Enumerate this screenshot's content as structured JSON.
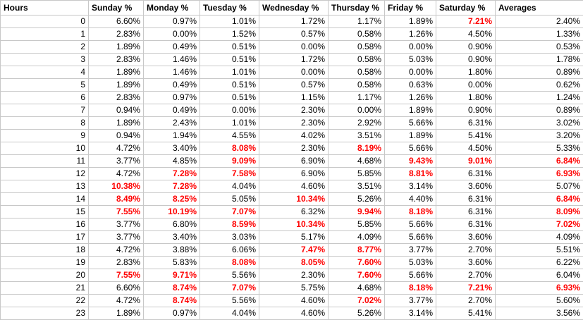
{
  "highlight_color": "#ff0000",
  "headers": [
    "Hours",
    "Sunday %",
    "Monday %",
    "Tuesday %",
    "Wednesday %",
    "Thursday %",
    "Friday %",
    "Saturday %",
    "Averages"
  ],
  "rows": [
    {
      "hour": "0",
      "cells": [
        {
          "v": "6.60%"
        },
        {
          "v": "0.97%"
        },
        {
          "v": "1.01%"
        },
        {
          "v": "1.72%"
        },
        {
          "v": "1.17%"
        },
        {
          "v": "1.89%"
        },
        {
          "v": "7.21%",
          "hl": true
        },
        {
          "v": "2.40%"
        }
      ]
    },
    {
      "hour": "1",
      "cells": [
        {
          "v": "2.83%"
        },
        {
          "v": "0.00%"
        },
        {
          "v": "1.52%"
        },
        {
          "v": "0.57%"
        },
        {
          "v": "0.58%"
        },
        {
          "v": "1.26%"
        },
        {
          "v": "4.50%"
        },
        {
          "v": "1.33%"
        }
      ]
    },
    {
      "hour": "2",
      "cells": [
        {
          "v": "1.89%"
        },
        {
          "v": "0.49%"
        },
        {
          "v": "0.51%"
        },
        {
          "v": "0.00%"
        },
        {
          "v": "0.58%"
        },
        {
          "v": "0.00%"
        },
        {
          "v": "0.90%"
        },
        {
          "v": "0.53%"
        }
      ]
    },
    {
      "hour": "3",
      "cells": [
        {
          "v": "2.83%"
        },
        {
          "v": "1.46%"
        },
        {
          "v": "0.51%"
        },
        {
          "v": "1.72%"
        },
        {
          "v": "0.58%"
        },
        {
          "v": "5.03%"
        },
        {
          "v": "0.90%"
        },
        {
          "v": "1.78%"
        }
      ]
    },
    {
      "hour": "4",
      "cells": [
        {
          "v": "1.89%"
        },
        {
          "v": "1.46%"
        },
        {
          "v": "1.01%"
        },
        {
          "v": "0.00%"
        },
        {
          "v": "0.58%"
        },
        {
          "v": "0.00%"
        },
        {
          "v": "1.80%"
        },
        {
          "v": "0.89%"
        }
      ]
    },
    {
      "hour": "5",
      "cells": [
        {
          "v": "1.89%"
        },
        {
          "v": "0.49%"
        },
        {
          "v": "0.51%"
        },
        {
          "v": "0.57%"
        },
        {
          "v": "0.58%"
        },
        {
          "v": "0.63%"
        },
        {
          "v": "0.00%"
        },
        {
          "v": "0.62%"
        }
      ]
    },
    {
      "hour": "6",
      "cells": [
        {
          "v": "2.83%"
        },
        {
          "v": "0.97%"
        },
        {
          "v": "0.51%"
        },
        {
          "v": "1.15%"
        },
        {
          "v": "1.17%"
        },
        {
          "v": "1.26%"
        },
        {
          "v": "1.80%"
        },
        {
          "v": "1.24%"
        }
      ]
    },
    {
      "hour": "7",
      "cells": [
        {
          "v": "0.94%"
        },
        {
          "v": "0.49%"
        },
        {
          "v": "0.00%"
        },
        {
          "v": "2.30%"
        },
        {
          "v": "0.00%"
        },
        {
          "v": "1.89%"
        },
        {
          "v": "0.90%"
        },
        {
          "v": "0.89%"
        }
      ]
    },
    {
      "hour": "8",
      "cells": [
        {
          "v": "1.89%"
        },
        {
          "v": "2.43%"
        },
        {
          "v": "1.01%"
        },
        {
          "v": "2.30%"
        },
        {
          "v": "2.92%"
        },
        {
          "v": "5.66%"
        },
        {
          "v": "6.31%"
        },
        {
          "v": "3.02%"
        }
      ]
    },
    {
      "hour": "9",
      "cells": [
        {
          "v": "0.94%"
        },
        {
          "v": "1.94%"
        },
        {
          "v": "4.55%"
        },
        {
          "v": "4.02%"
        },
        {
          "v": "3.51%"
        },
        {
          "v": "1.89%"
        },
        {
          "v": "5.41%"
        },
        {
          "v": "3.20%"
        }
      ]
    },
    {
      "hour": "10",
      "cells": [
        {
          "v": "4.72%"
        },
        {
          "v": "3.40%"
        },
        {
          "v": "8.08%",
          "hl": true
        },
        {
          "v": "2.30%"
        },
        {
          "v": "8.19%",
          "hl": true
        },
        {
          "v": "5.66%"
        },
        {
          "v": "4.50%"
        },
        {
          "v": "5.33%"
        }
      ]
    },
    {
      "hour": "11",
      "cells": [
        {
          "v": "3.77%"
        },
        {
          "v": "4.85%"
        },
        {
          "v": "9.09%",
          "hl": true
        },
        {
          "v": "6.90%"
        },
        {
          "v": "4.68%"
        },
        {
          "v": "9.43%",
          "hl": true
        },
        {
          "v": "9.01%",
          "hl": true
        },
        {
          "v": "6.84%",
          "hl": true
        }
      ]
    },
    {
      "hour": "12",
      "cells": [
        {
          "v": "4.72%"
        },
        {
          "v": "7.28%",
          "hl": true
        },
        {
          "v": "7.58%",
          "hl": true
        },
        {
          "v": "6.90%"
        },
        {
          "v": "5.85%"
        },
        {
          "v": "8.81%",
          "hl": true
        },
        {
          "v": "6.31%"
        },
        {
          "v": "6.93%",
          "hl": true
        }
      ]
    },
    {
      "hour": "13",
      "cells": [
        {
          "v": "10.38%",
          "hl": true
        },
        {
          "v": "7.28%",
          "hl": true
        },
        {
          "v": "4.04%"
        },
        {
          "v": "4.60%"
        },
        {
          "v": "3.51%"
        },
        {
          "v": "3.14%"
        },
        {
          "v": "3.60%"
        },
        {
          "v": "5.07%"
        }
      ]
    },
    {
      "hour": "14",
      "cells": [
        {
          "v": "8.49%",
          "hl": true
        },
        {
          "v": "8.25%",
          "hl": true
        },
        {
          "v": "5.05%"
        },
        {
          "v": "10.34%",
          "hl": true
        },
        {
          "v": "5.26%"
        },
        {
          "v": "4.40%"
        },
        {
          "v": "6.31%"
        },
        {
          "v": "6.84%",
          "hl": true
        }
      ]
    },
    {
      "hour": "15",
      "cells": [
        {
          "v": "7.55%",
          "hl": true
        },
        {
          "v": "10.19%",
          "hl": true
        },
        {
          "v": "7.07%",
          "hl": true
        },
        {
          "v": "6.32%"
        },
        {
          "v": "9.94%",
          "hl": true
        },
        {
          "v": "8.18%",
          "hl": true
        },
        {
          "v": "6.31%"
        },
        {
          "v": "8.09%",
          "hl": true
        }
      ]
    },
    {
      "hour": "16",
      "cells": [
        {
          "v": "3.77%"
        },
        {
          "v": "6.80%"
        },
        {
          "v": "8.59%",
          "hl": true
        },
        {
          "v": "10.34%",
          "hl": true
        },
        {
          "v": "5.85%"
        },
        {
          "v": "5.66%"
        },
        {
          "v": "6.31%"
        },
        {
          "v": "7.02%",
          "hl": true
        }
      ]
    },
    {
      "hour": "17",
      "cells": [
        {
          "v": "3.77%"
        },
        {
          "v": "3.40%"
        },
        {
          "v": "3.03%"
        },
        {
          "v": "5.17%"
        },
        {
          "v": "4.09%"
        },
        {
          "v": "5.66%"
        },
        {
          "v": "3.60%"
        },
        {
          "v": "4.09%"
        }
      ]
    },
    {
      "hour": "18",
      "cells": [
        {
          "v": "4.72%"
        },
        {
          "v": "3.88%"
        },
        {
          "v": "6.06%"
        },
        {
          "v": "7.47%",
          "hl": true
        },
        {
          "v": "8.77%",
          "hl": true
        },
        {
          "v": "3.77%"
        },
        {
          "v": "2.70%"
        },
        {
          "v": "5.51%"
        }
      ]
    },
    {
      "hour": "19",
      "cells": [
        {
          "v": "2.83%"
        },
        {
          "v": "5.83%"
        },
        {
          "v": "8.08%",
          "hl": true
        },
        {
          "v": "8.05%",
          "hl": true
        },
        {
          "v": "7.60%",
          "hl": true
        },
        {
          "v": "5.03%"
        },
        {
          "v": "3.60%"
        },
        {
          "v": "6.22%"
        }
      ]
    },
    {
      "hour": "20",
      "cells": [
        {
          "v": "7.55%",
          "hl": true
        },
        {
          "v": "9.71%",
          "hl": true
        },
        {
          "v": "5.56%"
        },
        {
          "v": "2.30%"
        },
        {
          "v": "7.60%",
          "hl": true
        },
        {
          "v": "5.66%"
        },
        {
          "v": "2.70%"
        },
        {
          "v": "6.04%"
        }
      ]
    },
    {
      "hour": "21",
      "cells": [
        {
          "v": "6.60%"
        },
        {
          "v": "8.74%",
          "hl": true
        },
        {
          "v": "7.07%",
          "hl": true
        },
        {
          "v": "5.75%"
        },
        {
          "v": "4.68%"
        },
        {
          "v": "8.18%",
          "hl": true
        },
        {
          "v": "7.21%",
          "hl": true
        },
        {
          "v": "6.93%",
          "hl": true
        }
      ]
    },
    {
      "hour": "22",
      "cells": [
        {
          "v": "4.72%"
        },
        {
          "v": "8.74%",
          "hl": true
        },
        {
          "v": "5.56%"
        },
        {
          "v": "4.60%"
        },
        {
          "v": "7.02%",
          "hl": true
        },
        {
          "v": "3.77%"
        },
        {
          "v": "2.70%"
        },
        {
          "v": "5.60%"
        }
      ]
    },
    {
      "hour": "23",
      "cells": [
        {
          "v": "1.89%"
        },
        {
          "v": "0.97%"
        },
        {
          "v": "4.04%"
        },
        {
          "v": "4.60%"
        },
        {
          "v": "5.26%"
        },
        {
          "v": "3.14%"
        },
        {
          "v": "5.41%"
        },
        {
          "v": "3.56%"
        }
      ]
    }
  ]
}
